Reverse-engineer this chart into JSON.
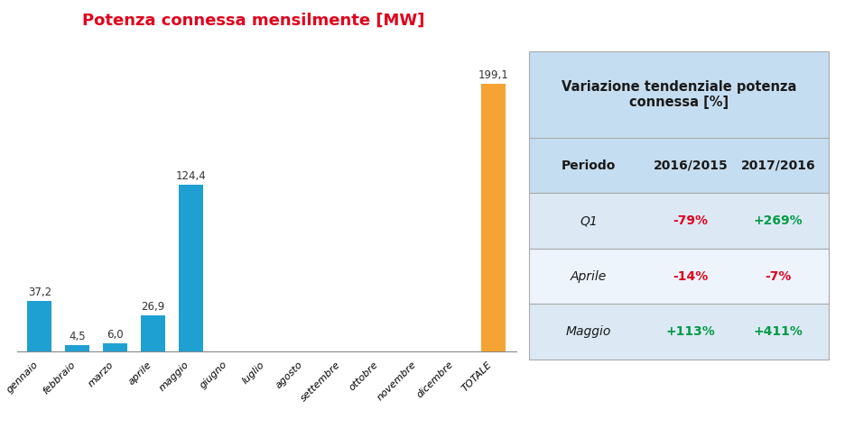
{
  "title": "Potenza connessa mensilmente [MW]",
  "title_color": "#e0001b",
  "title_fontsize": 13,
  "categories": [
    "gennaio",
    "febbraio",
    "marzo",
    "aprile",
    "maggio",
    "giugno",
    "luglio",
    "agosto",
    "settembre",
    "ottobre",
    "novembre",
    "dicembre",
    "TOTALE"
  ],
  "values": [
    37.2,
    4.5,
    6.0,
    26.9,
    124.4,
    0,
    0,
    0,
    0,
    0,
    0,
    0,
    199.1
  ],
  "bar_colors": [
    "#1fa0d2",
    "#1fa0d2",
    "#1fa0d2",
    "#1fa0d2",
    "#1fa0d2",
    "#1fa0d2",
    "#1fa0d2",
    "#1fa0d2",
    "#1fa0d2",
    "#1fa0d2",
    "#1fa0d2",
    "#1fa0d2",
    "#f5a332"
  ],
  "bar_labels": [
    "37,2",
    "4,5",
    "6,0",
    "26,9",
    "124,4",
    "",
    "",
    "",
    "",
    "",
    "",
    "",
    "199,1"
  ],
  "ylim": [
    0,
    230
  ],
  "table_title": "Variazione tendenziale potenza\nconnessa [%]",
  "table_header": [
    "Periodo",
    "2016/2015",
    "2017/2016"
  ],
  "table_rows": [
    [
      "Q1",
      "-79%",
      "+269%"
    ],
    [
      "Aprile",
      "-14%",
      "-7%"
    ],
    [
      "Maggio",
      "+113%",
      "+411%"
    ]
  ],
  "table_colors_col1": [
    "#e0001b",
    "#e0001b",
    "#009a44"
  ],
  "table_colors_col2": [
    "#009a44",
    "#e0001b",
    "#009a44"
  ],
  "background_color": "#ffffff",
  "table_bg_header": "#c5ddf0",
  "table_bg_row_odd": "#dce9f5",
  "table_bg_row_even": "#eef4fb"
}
